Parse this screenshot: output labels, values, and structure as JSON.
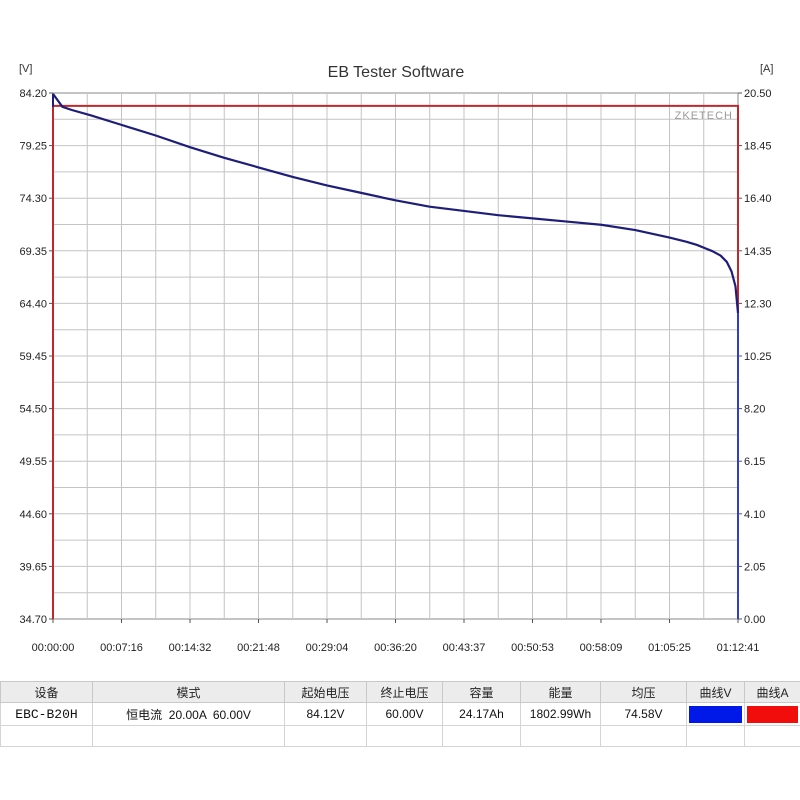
{
  "chart_data": {
    "type": "line",
    "title": "EB Tester Software",
    "left_axis_unit": "[V]",
    "right_axis_unit": "[A]",
    "watermark": "ZKETECH",
    "x_ticks": [
      "00:00:00",
      "00:07:16",
      "00:14:32",
      "00:21:48",
      "00:29:04",
      "00:36:20",
      "00:43:37",
      "00:50:53",
      "00:58:09",
      "01:05:25",
      "01:12:41"
    ],
    "y_left_ticks": [
      "84.20",
      "79.25",
      "74.30",
      "69.35",
      "64.40",
      "59.45",
      "54.50",
      "49.55",
      "44.60",
      "39.65",
      "34.70"
    ],
    "y_right_ticks": [
      "20.50",
      "18.45",
      "16.40",
      "14.35",
      "12.30",
      "10.25",
      "8.20",
      "6.15",
      "4.10",
      "2.05",
      "0.00"
    ],
    "xlim_seconds": [
      0,
      4361
    ],
    "ylim_left": [
      34.7,
      84.2
    ],
    "ylim_right": [
      0.0,
      20.5
    ],
    "grid": true,
    "series": [
      {
        "axis": "left",
        "color": "#1e1e7a",
        "x_seconds": [
          0,
          60,
          120,
          240,
          436,
          654,
          872,
          1090,
          1308,
          1526,
          1744,
          1962,
          2180,
          2398,
          2617,
          2835,
          3053,
          3271,
          3489,
          3707,
          3925,
          4034,
          4100,
          4150,
          4200,
          4250,
          4290,
          4320,
          4345,
          4361
        ],
        "values": [
          84.12,
          82.9,
          82.6,
          82.1,
          81.2,
          80.2,
          79.1,
          78.1,
          77.2,
          76.3,
          75.5,
          74.8,
          74.1,
          73.5,
          73.1,
          72.7,
          72.4,
          72.1,
          71.8,
          71.3,
          70.6,
          70.2,
          69.9,
          69.6,
          69.3,
          68.9,
          68.3,
          67.4,
          66.0,
          63.5
        ]
      },
      {
        "axis": "right",
        "color": "#c0282c",
        "x_seconds": [
          0,
          60,
          4361
        ],
        "values": [
          20.0,
          20.0,
          20.0
        ]
      }
    ]
  },
  "table": {
    "headers": [
      "设备",
      "模式",
      "起始电压",
      "终止电压",
      "容量",
      "能量",
      "均压",
      "曲线V",
      "曲线A"
    ],
    "row": {
      "device": "EBC-B20H",
      "mode": "恒电流  20.00A  60.00V",
      "start_voltage": "84.12V",
      "end_voltage": "60.00V",
      "capacity": "24.17Ah",
      "energy": "1802.99Wh",
      "avg_voltage": "74.58V"
    },
    "curve_v_color": "#0019e8",
    "curve_a_color": "#f20d0d"
  }
}
